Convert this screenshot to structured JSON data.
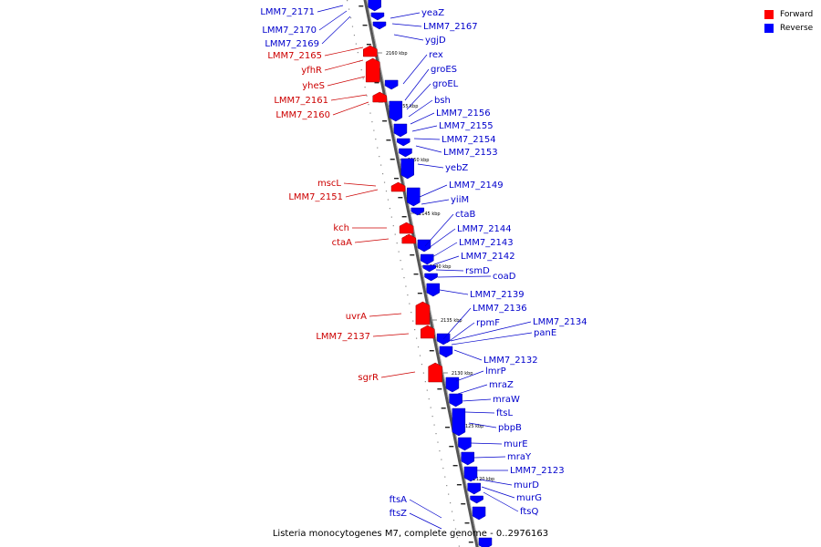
{
  "legend": {
    "forward_label": "Forward",
    "reverse_label": "Reverse",
    "forward_color": "#ff0000",
    "reverse_color": "#0000ff"
  },
  "caption": "Listeria monocytogenes M7, complete genome - 0..2976163",
  "ticks": [
    "2160 kbp",
    "2155 kbp",
    "2150 kbp",
    "2145 kbp",
    "2140 kbp",
    "2135 kbp",
    "2130 kbp",
    "2125 kbp",
    "2120 kbp"
  ],
  "forward_genes": [
    "LMM7_2165",
    "yfhR",
    "yheS",
    "LMM7_2161",
    "LMM7_2160",
    "mscL",
    "LMM7_2151",
    "kch",
    "ctaA",
    "uvrA",
    "LMM7_2137",
    "sgrR"
  ],
  "reverse_genes": [
    "LMM7_2171",
    "LMM7_2170",
    "LMM7_2169",
    "yeaZ",
    "LMM7_2167",
    "ygjD",
    "rex",
    "groES",
    "groEL",
    "bsh",
    "LMM7_2156",
    "LMM7_2155",
    "LMM7_2154",
    "LMM7_2153",
    "yebZ",
    "LMM7_2149",
    "yiiM",
    "ctaB",
    "LMM7_2144",
    "LMM7_2143",
    "LMM7_2142",
    "rsmD",
    "coaD",
    "LMM7_2139",
    "LMM7_2136",
    "rpmF",
    "LMM7_2134",
    "panE",
    "LMM7_2132",
    "lmrP",
    "mraZ",
    "mraW",
    "ftsL",
    "pbpB",
    "murE",
    "mraY",
    "LMM7_2123",
    "murD",
    "murG",
    "ftsQ",
    "ftsA",
    "ftsZ"
  ]
}
